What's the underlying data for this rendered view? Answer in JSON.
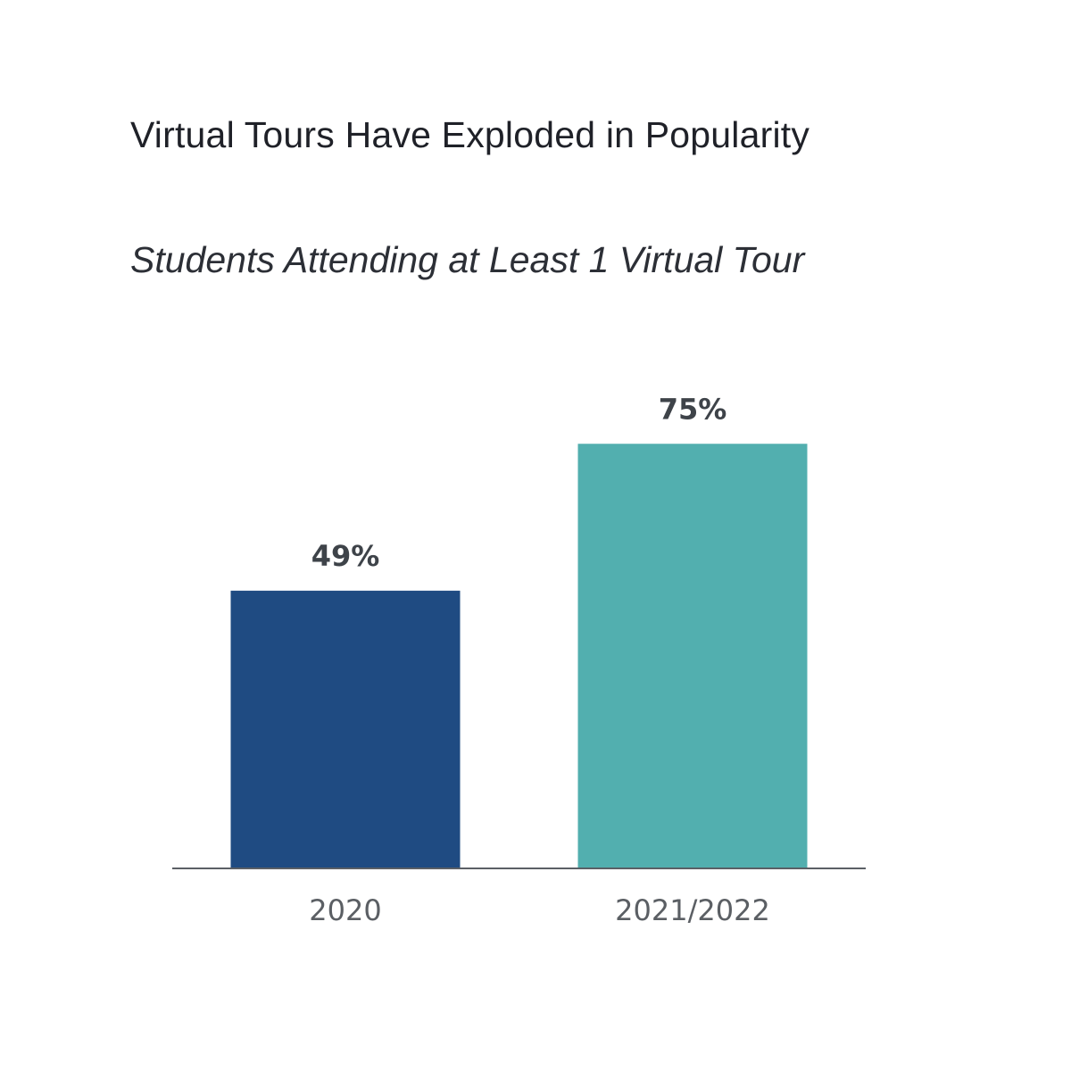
{
  "chart_data": {
    "type": "bar",
    "title": "Virtual Tours Have Exploded in Popularity",
    "subtitle": "Students Attending at Least 1 Virtual Tour",
    "categories": [
      "2020",
      "2021/2022"
    ],
    "values": [
      49,
      75
    ],
    "data_labels": [
      "49%",
      "75%"
    ],
    "colors": [
      "#1f4b82",
      "#52afaf"
    ],
    "axis_color": "#5b6066",
    "ylim": [
      0,
      100
    ],
    "grid": false,
    "legend": "none"
  }
}
